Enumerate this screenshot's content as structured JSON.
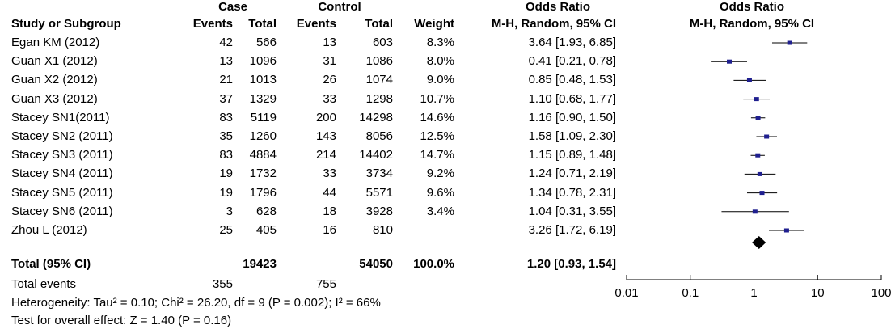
{
  "headers": {
    "case": "Case",
    "control": "Control",
    "odds_ratio_table": "Odds Ratio",
    "odds_ratio_plot": "Odds Ratio",
    "study": "Study or Subgroup",
    "case_events": "Events",
    "case_total": "Total",
    "control_events": "Events",
    "control_total": "Total",
    "weight": "Weight",
    "method_table": "M-H, Random, 95% CI",
    "method_plot": "M-H, Random, 95% CI"
  },
  "rows": [
    {
      "study": "Egan KM (2012)",
      "case_events": "42",
      "case_total": "566",
      "control_events": "13",
      "control_total": "603",
      "weight": "8.3%",
      "or_ci": "3.64 [1.93, 6.85]"
    },
    {
      "study": "Guan X1 (2012)",
      "case_events": "13",
      "case_total": "1096",
      "control_events": "31",
      "control_total": "1086",
      "weight": "8.0%",
      "or_ci": "0.41 [0.21, 0.78]"
    },
    {
      "study": "Guan X2 (2012)",
      "case_events": "21",
      "case_total": "1013",
      "control_events": "26",
      "control_total": "1074",
      "weight": "9.0%",
      "or_ci": "0.85 [0.48, 1.53]"
    },
    {
      "study": "Guan X3 (2012)",
      "case_events": "37",
      "case_total": "1329",
      "control_events": "33",
      "control_total": "1298",
      "weight": "10.7%",
      "or_ci": "1.10 [0.68, 1.77]"
    },
    {
      "study": "Stacey SN1(2011)",
      "case_events": "83",
      "case_total": "5119",
      "control_events": "200",
      "control_total": "14298",
      "weight": "14.6%",
      "or_ci": "1.16 [0.90, 1.50]"
    },
    {
      "study": "Stacey SN2 (2011)",
      "case_events": "35",
      "case_total": "1260",
      "control_events": "143",
      "control_total": "8056",
      "weight": "12.5%",
      "or_ci": "1.58 [1.09, 2.30]"
    },
    {
      "study": "Stacey SN3 (2011)",
      "case_events": "83",
      "case_total": "4884",
      "control_events": "214",
      "control_total": "14402",
      "weight": "14.7%",
      "or_ci": "1.15 [0.89, 1.48]"
    },
    {
      "study": "Stacey SN4 (2011)",
      "case_events": "19",
      "case_total": "1732",
      "control_events": "33",
      "control_total": "3734",
      "weight": "9.2%",
      "or_ci": "1.24 [0.71, 2.19]"
    },
    {
      "study": "Stacey SN5 (2011)",
      "case_events": "19",
      "case_total": "1796",
      "control_events": "44",
      "control_total": "5571",
      "weight": "9.6%",
      "or_ci": "1.34 [0.78, 2.31]"
    },
    {
      "study": "Stacey SN6 (2011)",
      "case_events": "3",
      "case_total": "628",
      "control_events": "18",
      "control_total": "3928",
      "weight": "3.4%",
      "or_ci": "1.04 [0.31, 3.55]"
    },
    {
      "study": "Zhou L (2012)",
      "case_events": "25",
      "case_total": "405",
      "control_events": "16",
      "control_total": "810",
      "weight": "",
      "or_ci": "3.26 [1.72, 6.19]"
    }
  ],
  "total": {
    "label": "Total (95% CI)",
    "case_total": "19423",
    "control_total": "54050",
    "weight": "100.0%",
    "or_ci": "1.20 [0.93, 1.54]"
  },
  "total_events": {
    "label": "Total events",
    "case": "355",
    "control": "755"
  },
  "heterogeneity": "Heterogeneity: Tau² = 0.10; Chi² = 26.20, df = 9 (P = 0.002); I² = 66%",
  "overall_effect": "Test for overall effect: Z = 1.40 (P = 0.16)",
  "chart_data": {
    "type": "scatter",
    "scale": "log",
    "xlim": [
      0.01,
      100
    ],
    "reference_line": 1,
    "tick_labels": [
      "0.01",
      "0.1",
      "1",
      "10",
      "100"
    ],
    "tick_values": [
      0.01,
      0.1,
      1,
      10,
      100
    ],
    "studies": [
      {
        "label": "Egan KM (2012)",
        "or": 3.64,
        "lo": 1.93,
        "hi": 6.85
      },
      {
        "label": "Guan X1 (2012)",
        "or": 0.41,
        "lo": 0.21,
        "hi": 0.78
      },
      {
        "label": "Guan X2 (2012)",
        "or": 0.85,
        "lo": 0.48,
        "hi": 1.53
      },
      {
        "label": "Guan X3 (2012)",
        "or": 1.1,
        "lo": 0.68,
        "hi": 1.77
      },
      {
        "label": "Stacey SN1(2011)",
        "or": 1.16,
        "lo": 0.9,
        "hi": 1.5
      },
      {
        "label": "Stacey SN2 (2011)",
        "or": 1.58,
        "lo": 1.09,
        "hi": 2.3
      },
      {
        "label": "Stacey SN3 (2011)",
        "or": 1.15,
        "lo": 0.89,
        "hi": 1.48
      },
      {
        "label": "Stacey SN4 (2011)",
        "or": 1.24,
        "lo": 0.71,
        "hi": 2.19
      },
      {
        "label": "Stacey SN5 (2011)",
        "or": 1.34,
        "lo": 0.78,
        "hi": 2.31
      },
      {
        "label": "Stacey SN6 (2011)",
        "or": 1.04,
        "lo": 0.31,
        "hi": 3.55
      },
      {
        "label": "Zhou L (2012)",
        "or": 3.26,
        "lo": 1.72,
        "hi": 6.19
      }
    ],
    "pooled": {
      "label": "Total (95% CI)",
      "or": 1.2,
      "lo": 0.93,
      "hi": 1.54
    },
    "colors": {
      "marker": "#1f1f8f",
      "line": "#000000"
    }
  }
}
